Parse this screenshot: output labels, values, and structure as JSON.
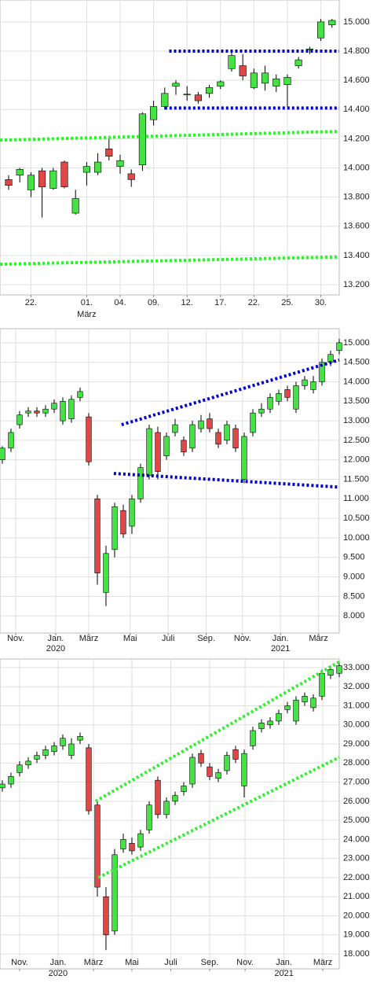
{
  "chart_data": [
    {
      "type": "candlestick",
      "xlim": [
        -0.775,
        29.65
      ],
      "ylim": [
        13130,
        15150
      ],
      "yticks": [
        {
          "value": 13200,
          "label": "13.200"
        },
        {
          "value": 13400,
          "label": "13.400"
        },
        {
          "value": 13600,
          "label": "13.600"
        },
        {
          "value": 13800,
          "label": "13.800"
        },
        {
          "value": 14000,
          "label": "14.000"
        },
        {
          "value": 14200,
          "label": "14.200"
        },
        {
          "value": 14400,
          "label": "14.400"
        },
        {
          "value": 14600,
          "label": "14.600"
        },
        {
          "value": 14800,
          "label": "14.800"
        },
        {
          "value": 15000,
          "label": "15.000"
        }
      ],
      "xticks": [
        {
          "value": 2,
          "label": "22."
        },
        {
          "value": 7,
          "label": "01."
        },
        {
          "value": 10,
          "label": "04."
        },
        {
          "value": 13,
          "label": "09."
        },
        {
          "value": 16,
          "label": "12."
        },
        {
          "value": 19,
          "label": "17."
        },
        {
          "value": 22,
          "label": "22."
        },
        {
          "value": 25,
          "label": "25."
        },
        {
          "value": 28,
          "label": "30."
        }
      ],
      "xlabels2": [
        {
          "value": 7,
          "label": "März"
        }
      ],
      "grid": true,
      "up_color": "#44e244",
      "down_color": "#e04848",
      "open": [
        13920,
        13950,
        13850,
        13980,
        13860,
        14040,
        13690,
        13970,
        13970,
        14130,
        14010,
        13960,
        14020,
        14330,
        14420,
        14560,
        14500,
        14500,
        14510,
        14560,
        14680,
        14700,
        14550,
        14580,
        14560,
        14570,
        14700,
        14810,
        14890,
        14980
      ],
      "close": [
        13880,
        13990,
        13950,
        13870,
        13980,
        13870,
        13790,
        14010,
        14040,
        14080,
        14050,
        13920,
        14370,
        14420,
        14510,
        14580,
        14505,
        14460,
        14550,
        14590,
        14770,
        14630,
        14650,
        14650,
        14610,
        14620,
        14740,
        14815,
        15000,
        15010
      ],
      "high": [
        13950,
        14000,
        13970,
        14000,
        14000,
        14050,
        13850,
        14040,
        14100,
        14200,
        14090,
        13990,
        14380,
        14460,
        14550,
        14600,
        14560,
        14520,
        14570,
        14600,
        14790,
        14780,
        14680,
        14700,
        14640,
        14640,
        14760,
        14830,
        15020,
        15020
      ],
      "low": [
        13850,
        13900,
        13800,
        13660,
        13850,
        13860,
        13680,
        13880,
        13950,
        14050,
        13960,
        13870,
        13980,
        14290,
        14400,
        14500,
        14460,
        14440,
        14480,
        14540,
        14660,
        14600,
        14540,
        14530,
        14520,
        14420,
        14680,
        14780,
        14870,
        14960
      ],
      "lines": [
        {
          "color": "#0000cc",
          "x": [
            14.4,
            29.65
          ],
          "values": [
            14800,
            14800
          ]
        },
        {
          "color": "#0000cc",
          "x": [
            14.0,
            29.65
          ],
          "values": [
            14410,
            14410
          ]
        },
        {
          "color": "#33ee33",
          "x": [
            -0.775,
            29.65
          ],
          "values": [
            14190,
            14250
          ]
        },
        {
          "color": "#33ee33",
          "x": [
            -0.775,
            29.65
          ],
          "values": [
            13340,
            13390
          ]
        }
      ]
    },
    {
      "type": "candlestick",
      "xlim": [
        -0.27,
        39
      ],
      "ylim": [
        7560,
        15360
      ],
      "yticks": [
        {
          "value": 8000,
          "label": "8.000"
        },
        {
          "value": 8500,
          "label": "8.500"
        },
        {
          "value": 9000,
          "label": "9.000"
        },
        {
          "value": 9500,
          "label": "9.500"
        },
        {
          "value": 10000,
          "label": "10.000"
        },
        {
          "value": 10500,
          "label": "10.500"
        },
        {
          "value": 11000,
          "label": "11.000"
        },
        {
          "value": 11500,
          "label": "11.500"
        },
        {
          "value": 12000,
          "label": "12.000"
        },
        {
          "value": 12500,
          "label": "12.500"
        },
        {
          "value": 13000,
          "label": "13.000"
        },
        {
          "value": 13500,
          "label": "13.500"
        },
        {
          "value": 14000,
          "label": "14.000"
        },
        {
          "value": 14500,
          "label": "14.500"
        },
        {
          "value": 15000,
          "label": "15.000"
        }
      ],
      "xticks": [
        {
          "value": 1.55,
          "label": "Nov."
        },
        {
          "value": 6.18,
          "label": "Jan."
        },
        {
          "value": 10,
          "label": "März"
        },
        {
          "value": 14.8,
          "label": "Mai"
        },
        {
          "value": 19.2,
          "label": "Juli"
        },
        {
          "value": 23.6,
          "label": "Sep."
        },
        {
          "value": 27.8,
          "label": "Nov."
        },
        {
          "value": 32.2,
          "label": "Jan."
        },
        {
          "value": 36.6,
          "label": "März"
        }
      ],
      "xlabels2": [
        {
          "value": 6.18,
          "label": "2020"
        },
        {
          "value": 32.2,
          "label": "2021"
        }
      ],
      "grid": true,
      "up_color": "#44e244",
      "down_color": "#e04848",
      "open": [
        12000,
        12300,
        12900,
        13200,
        13250,
        13200,
        13300,
        13000,
        13050,
        13600,
        13100,
        11000,
        8600,
        9700,
        10700,
        10300,
        11000,
        11600,
        12700,
        12100,
        12700,
        12500,
        12300,
        12800,
        13050,
        12700,
        12500,
        12800,
        11500,
        12700,
        13200,
        13300,
        13500,
        13800,
        13300,
        13900,
        13800,
        14000,
        14500,
        14800
      ],
      "close": [
        12300,
        12700,
        13150,
        13250,
        13200,
        13300,
        13450,
        13500,
        13550,
        13750,
        11950,
        9100,
        9600,
        10800,
        10100,
        11000,
        11800,
        12800,
        11700,
        12600,
        12900,
        12200,
        12900,
        13000,
        12800,
        12400,
        12900,
        12300,
        12600,
        13200,
        13300,
        13600,
        13700,
        13600,
        13900,
        14050,
        14000,
        14500,
        14700,
        15000
      ],
      "high": [
        12350,
        12800,
        13250,
        13350,
        13350,
        13400,
        13550,
        13600,
        13650,
        13850,
        13200,
        11100,
        9800,
        10900,
        10850,
        11100,
        11900,
        12900,
        12850,
        12700,
        13050,
        12600,
        13000,
        13150,
        13200,
        12800,
        13000,
        12900,
        12700,
        13300,
        13450,
        13700,
        13800,
        13900,
        14000,
        14150,
        14150,
        14600,
        14800,
        15100
      ],
      "low": [
        11900,
        12200,
        12800,
        13100,
        13100,
        13100,
        13200,
        12900,
        12950,
        13500,
        11850,
        8800,
        8250,
        9500,
        10000,
        10100,
        10900,
        11500,
        11500,
        12000,
        12600,
        12100,
        12200,
        12700,
        12700,
        12300,
        12400,
        12200,
        11400,
        12600,
        13100,
        13200,
        13400,
        13500,
        13200,
        13800,
        13700,
        13900,
        14400,
        14700
      ],
      "lines": [
        {
          "color": "#0000cc",
          "x": [
            13.8,
            39
          ],
          "values": [
            12900,
            14560
          ]
        },
        {
          "color": "#0000cc",
          "x": [
            12.9,
            39
          ],
          "values": [
            11650,
            11300
          ]
        }
      ]
    },
    {
      "type": "candlestick",
      "xlim": [
        -0.27,
        39
      ],
      "ylim": [
        17220,
        33450
      ],
      "yticks": [
        {
          "value": 18000,
          "label": "18.000"
        },
        {
          "value": 19000,
          "label": "19.000"
        },
        {
          "value": 20000,
          "label": "20.000"
        },
        {
          "value": 21000,
          "label": "21.000"
        },
        {
          "value": 22000,
          "label": "22.000"
        },
        {
          "value": 23000,
          "label": "23.000"
        },
        {
          "value": 24000,
          "label": "24.000"
        },
        {
          "value": 25000,
          "label": "25.000"
        },
        {
          "value": 26000,
          "label": "26.000"
        },
        {
          "value": 27000,
          "label": "27.000"
        },
        {
          "value": 28000,
          "label": "28.000"
        },
        {
          "value": 29000,
          "label": "29.000"
        },
        {
          "value": 30000,
          "label": "30.000"
        },
        {
          "value": 31000,
          "label": "31.000"
        },
        {
          "value": 32000,
          "label": "32.000"
        },
        {
          "value": 33000,
          "label": "33.000"
        }
      ],
      "xticks": [
        {
          "value": 2,
          "label": "Nov."
        },
        {
          "value": 6.45,
          "label": "Jan."
        },
        {
          "value": 10.55,
          "label": "März"
        },
        {
          "value": 15,
          "label": "Mai"
        },
        {
          "value": 19.5,
          "label": "Juli"
        },
        {
          "value": 24,
          "label": "Sep."
        },
        {
          "value": 28.1,
          "label": "Nov."
        },
        {
          "value": 32.6,
          "label": "Jan."
        },
        {
          "value": 37.1,
          "label": "März"
        }
      ],
      "xlabels2": [
        {
          "value": 6.45,
          "label": "2020"
        },
        {
          "value": 32.6,
          "label": "2021"
        }
      ],
      "grid": true,
      "up_color": "#44e244",
      "down_color": "#e04848",
      "open": [
        26700,
        26900,
        27500,
        27900,
        28200,
        28400,
        28600,
        28900,
        28400,
        29200,
        28800,
        25800,
        21000,
        19200,
        23500,
        23800,
        23600,
        24500,
        27100,
        25300,
        26000,
        26500,
        26900,
        28500,
        27800,
        27200,
        27600,
        28700,
        26800,
        28900,
        29800,
        30000,
        30200,
        30800,
        30200,
        31200,
        30900,
        31500,
        32600,
        32700
      ],
      "close": [
        26900,
        27300,
        27900,
        28100,
        28400,
        28700,
        28900,
        29300,
        29000,
        29400,
        25500,
        21500,
        19000,
        23200,
        24000,
        23400,
        24300,
        25800,
        25300,
        26000,
        26300,
        26800,
        28300,
        28000,
        27300,
        27500,
        28400,
        28200,
        28500,
        29700,
        30100,
        30200,
        30600,
        31000,
        31300,
        31500,
        31400,
        32700,
        32900,
        33100
      ],
      "high": [
        27100,
        27500,
        28100,
        28300,
        28600,
        28900,
        29100,
        29500,
        29300,
        29600,
        29000,
        26000,
        21500,
        23500,
        24300,
        24100,
        24500,
        26000,
        27300,
        26200,
        26500,
        27000,
        28500,
        28700,
        28000,
        27700,
        28600,
        28900,
        28700,
        29900,
        30300,
        30400,
        30800,
        31200,
        31500,
        31700,
        31600,
        32900,
        33100,
        33300
      ],
      "low": [
        26500,
        26700,
        27300,
        27700,
        28000,
        28200,
        28400,
        28700,
        28200,
        29000,
        25300,
        21000,
        18200,
        19000,
        23300,
        23200,
        23400,
        24300,
        25100,
        25100,
        25800,
        26300,
        26700,
        27800,
        27100,
        27000,
        27400,
        28000,
        26200,
        28700,
        29600,
        29800,
        30000,
        30600,
        30000,
        31000,
        30700,
        31300,
        32400,
        32500
      ],
      "lines": [
        {
          "color": "#33ee33",
          "x": [
            10.8,
            39
          ],
          "values": [
            26000,
            33300
          ]
        },
        {
          "color": "#33ee33",
          "x": [
            11.1,
            39
          ],
          "values": [
            22000,
            28300
          ]
        }
      ]
    }
  ]
}
